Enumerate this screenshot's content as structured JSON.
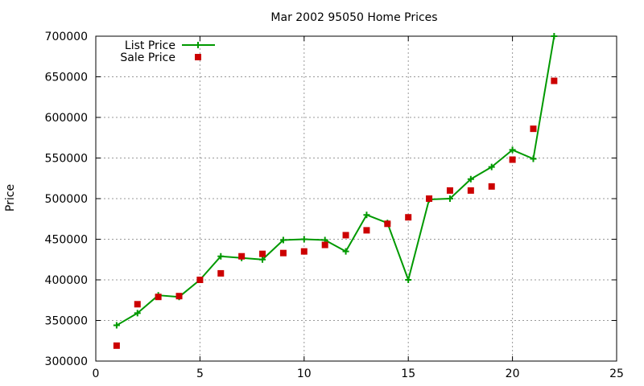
{
  "chart_data": {
    "type": "line",
    "title": "Mar 2002 95050 Home Prices",
    "xlabel": "",
    "ylabel": "Price",
    "xlim": [
      0,
      25
    ],
    "ylim": [
      300000,
      700000
    ],
    "xticks": [
      0,
      5,
      10,
      15,
      20,
      25
    ],
    "yticks": [
      300000,
      350000,
      400000,
      450000,
      500000,
      550000,
      600000,
      650000,
      700000
    ],
    "grid": true,
    "legend_position": "top-left",
    "series": [
      {
        "name": "List Price",
        "style": "line-plus",
        "color": "#009900",
        "x": [
          1,
          2,
          3,
          4,
          5,
          6,
          7,
          8,
          9,
          10,
          11,
          12,
          13,
          14,
          15,
          16,
          17,
          18,
          19,
          20,
          21,
          22
        ],
        "values": [
          344000,
          359000,
          381000,
          379000,
          400000,
          429000,
          427000,
          425000,
          449000,
          450000,
          449000,
          435000,
          480000,
          470000,
          400000,
          499000,
          500000,
          524000,
          539000,
          560000,
          549000,
          700000
        ]
      },
      {
        "name": "Sale Price",
        "style": "square",
        "color": "#cc0000",
        "x": [
          1,
          2,
          3,
          4,
          5,
          6,
          7,
          8,
          9,
          10,
          11,
          12,
          13,
          14,
          15,
          16,
          17,
          18,
          19,
          20,
          21,
          22
        ],
        "values": [
          319000,
          370000,
          379000,
          380000,
          400000,
          408000,
          429000,
          432000,
          433000,
          435000,
          443000,
          455000,
          461000,
          469000,
          477000,
          500000,
          510000,
          510000,
          515000,
          548000,
          586000,
          645000
        ]
      }
    ]
  }
}
